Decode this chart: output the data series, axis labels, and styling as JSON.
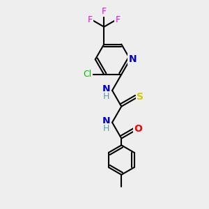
{
  "background_color": "#eeeeee",
  "atom_colors": {
    "C": "#000000",
    "N": "#0000cc",
    "O": "#ff0000",
    "S": "#cccc00",
    "F": "#ff00ff",
    "Cl": "#00bb00",
    "H": "#5599aa"
  },
  "figsize": [
    3.0,
    3.0
  ],
  "dpi": 100
}
